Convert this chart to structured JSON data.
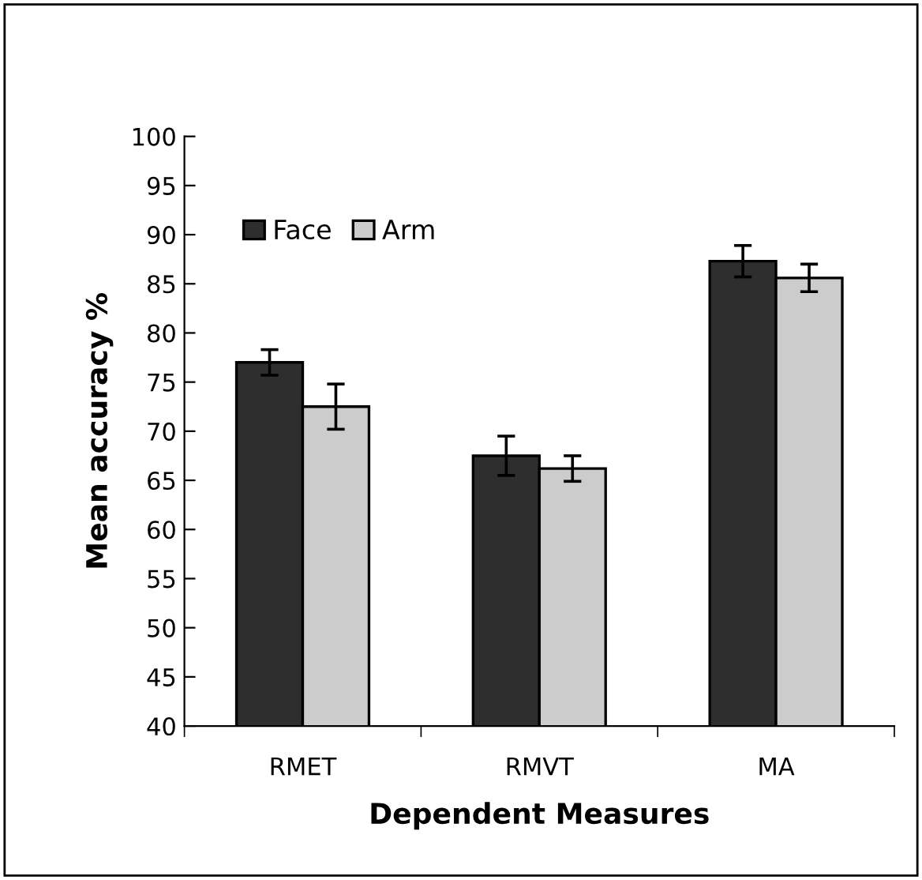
{
  "chart_data": {
    "type": "bar",
    "xlabel": "Dependent Measures",
    "ylabel": "Mean accuracy %",
    "categories": [
      "RMET",
      "RMVT",
      "MA"
    ],
    "series": [
      {
        "name": "Face",
        "color": "#2e2e2e",
        "values": [
          77,
          67.5,
          87.3
        ],
        "errors": [
          1.3,
          2,
          1.6
        ]
      },
      {
        "name": "Arm",
        "color": "#cccccc",
        "values": [
          72.5,
          66.2,
          85.6
        ],
        "errors": [
          2.3,
          1.3,
          1.4
        ]
      }
    ],
    "ylim": [
      40,
      100
    ],
    "yticks": [
      40,
      45,
      50,
      55,
      60,
      65,
      70,
      75,
      80,
      85,
      90,
      95,
      100
    ],
    "grid": false,
    "legend": "top left"
  }
}
